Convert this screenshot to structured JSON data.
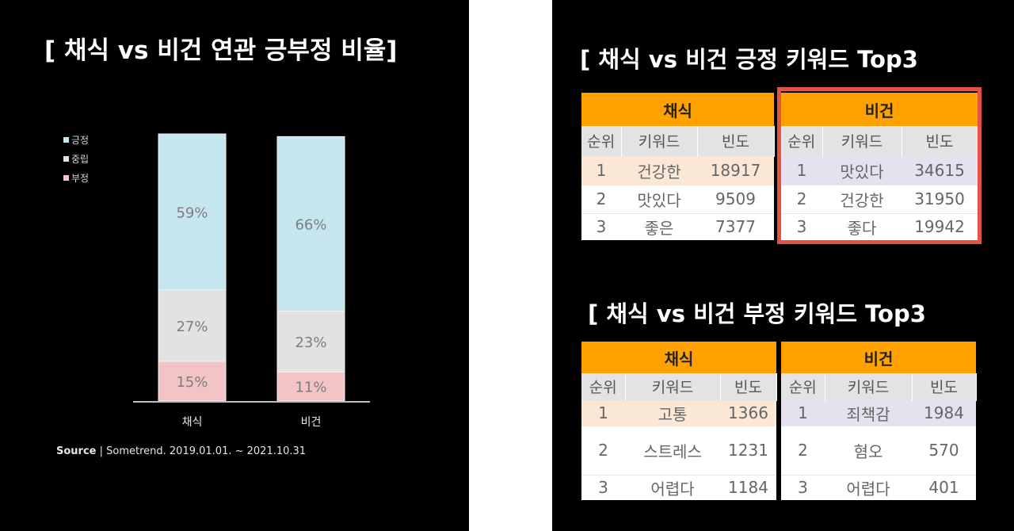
{
  "left": {
    "title": "[ 채식 vs 비건 연관 긍부정 비율]",
    "source_bold": "Source",
    "source_rest": " | Sometrend. 2019.01.01. ~ 2021.10.31"
  },
  "chart_data": {
    "type": "bar",
    "stacked": true,
    "title": "[ 채식 vs 비건 연관 긍부정 비율]",
    "categories": [
      "채식",
      "비건"
    ],
    "series": [
      {
        "name": "긍정",
        "values": [
          59,
          66
        ],
        "labels": [
          "59%",
          "66%"
        ],
        "color": "#c5e6ef"
      },
      {
        "name": "중립",
        "values": [
          27,
          23
        ],
        "labels": [
          "27%",
          "23%"
        ],
        "color": "#e2e2e2"
      },
      {
        "name": "부정",
        "values": [
          15,
          11
        ],
        "labels": [
          "15%",
          "11%"
        ],
        "color": "#f3c4c6"
      }
    ],
    "ylim": [
      0,
      101
    ],
    "grid": false,
    "legend": "left"
  },
  "right": {
    "pos_title": "[ 채식 vs 비건 긍정 키워드 Top3",
    "neg_title": "[ 채식 vs 비건 부정 키워드 Top3",
    "columns": [
      "순위",
      "키워드",
      "빈도"
    ],
    "positive": {
      "vegetarian": {
        "header": "채식",
        "rows": [
          [
            "1",
            "건강한",
            "18917"
          ],
          [
            "2",
            "맛있다",
            "9509"
          ],
          [
            "3",
            "좋은",
            "7377"
          ]
        ]
      },
      "vegan": {
        "header": "비건",
        "rows": [
          [
            "1",
            "맛있다",
            "34615"
          ],
          [
            "2",
            "건강한",
            "31950"
          ],
          [
            "3",
            "좋다",
            "19942"
          ]
        ]
      }
    },
    "negative": {
      "vegetarian": {
        "header": "채식",
        "rows": [
          [
            "1",
            "고통",
            "1366"
          ],
          [
            "2",
            "스트레스",
            "1231"
          ],
          [
            "3",
            "어렵다",
            "1184"
          ]
        ]
      },
      "vegan": {
        "header": "비건",
        "rows": [
          [
            "1",
            "죄책감",
            "1984"
          ],
          [
            "2",
            "혐오",
            "570"
          ],
          [
            "3",
            "어렵다",
            "401"
          ]
        ]
      }
    },
    "highlight_color": "#e35344",
    "header_color": "#ffa200"
  }
}
